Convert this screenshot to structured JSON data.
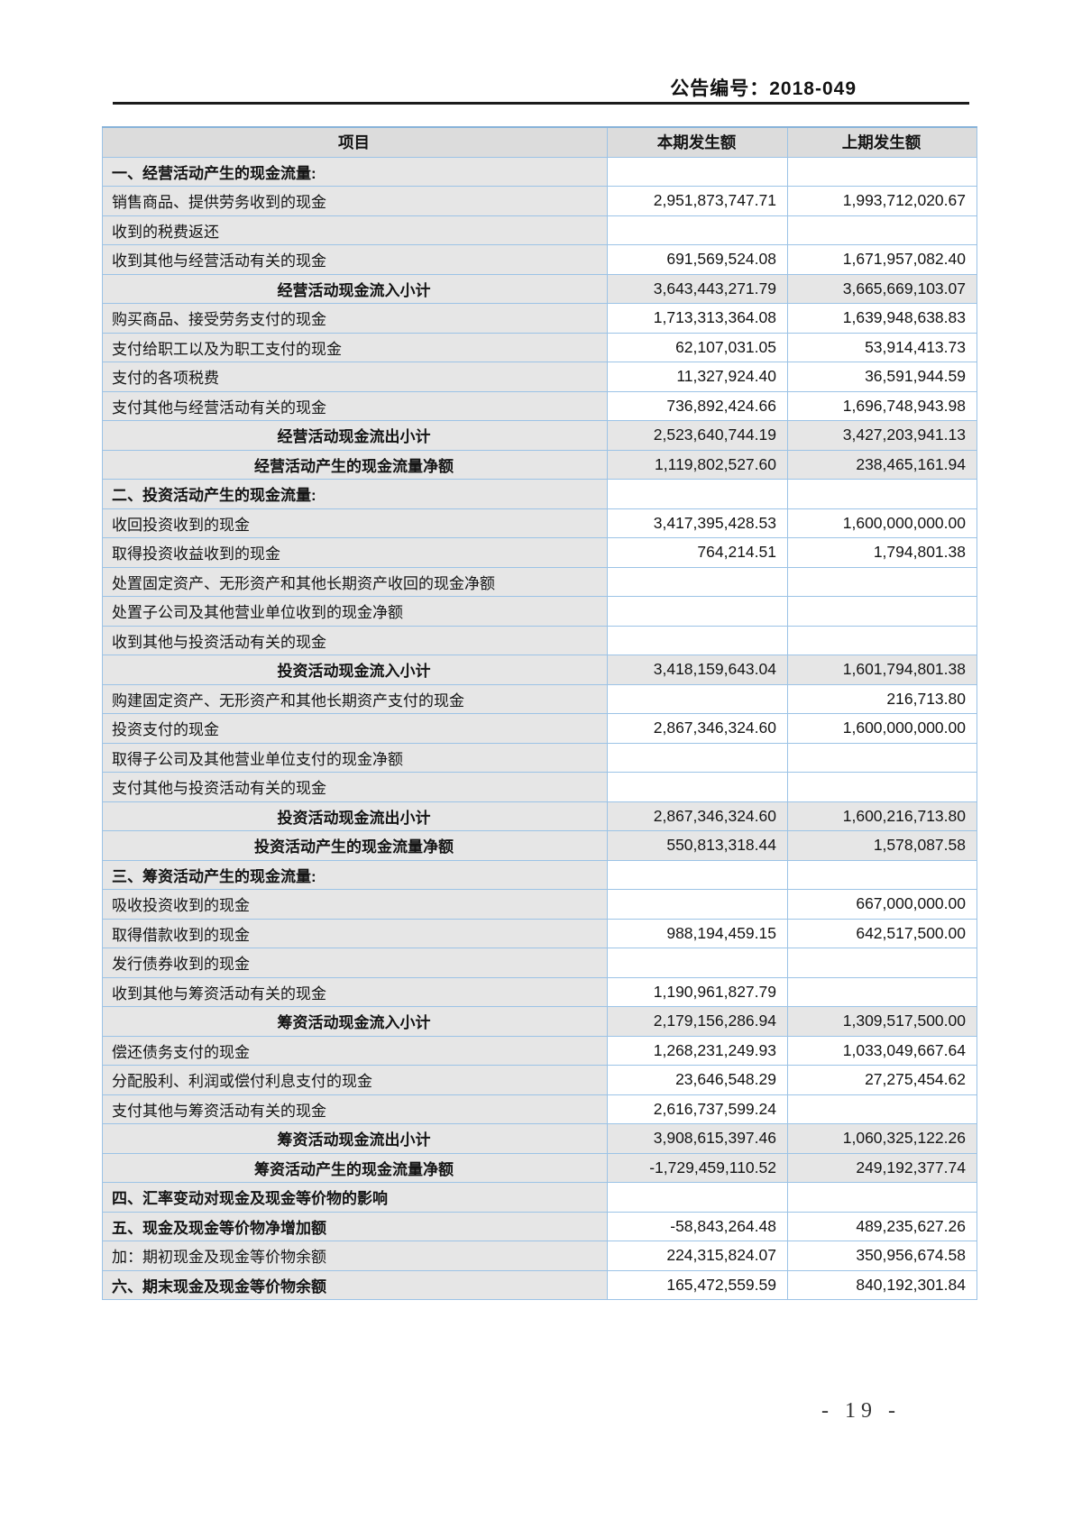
{
  "page": {
    "doc_number": "公告编号：2018-049",
    "page_number": "- 19 -"
  },
  "colors": {
    "table_border": "#9cc3e6",
    "header_fill": "#dcdcdc",
    "label_column_fill": "#e6e6e6",
    "subtotal_row_fill": "#e6e6e6",
    "header_rule": "#1c1c1c",
    "text": "#141414"
  },
  "table": {
    "headers": [
      "项目",
      "本期发生额",
      "上期发生额"
    ],
    "rows": [
      {
        "label": "一、经营活动产生的现金流量:",
        "current": "",
        "prior": "",
        "bold": true,
        "center": false,
        "shaded": false
      },
      {
        "label": "销售商品、提供劳务收到的现金",
        "current": "2,951,873,747.71",
        "prior": "1,993,712,020.67",
        "bold": false,
        "center": false,
        "shaded": false
      },
      {
        "label": "收到的税费返还",
        "current": "",
        "prior": "",
        "bold": false,
        "center": false,
        "shaded": false
      },
      {
        "label": "收到其他与经营活动有关的现金",
        "current": "691,569,524.08",
        "prior": "1,671,957,082.40",
        "bold": false,
        "center": false,
        "shaded": false
      },
      {
        "label": "经营活动现金流入小计",
        "current": "3,643,443,271.79",
        "prior": "3,665,669,103.07",
        "bold": true,
        "center": true,
        "shaded": true
      },
      {
        "label": "购买商品、接受劳务支付的现金",
        "current": "1,713,313,364.08",
        "prior": "1,639,948,638.83",
        "bold": false,
        "center": false,
        "shaded": false
      },
      {
        "label": "支付给职工以及为职工支付的现金",
        "current": "62,107,031.05",
        "prior": "53,914,413.73",
        "bold": false,
        "center": false,
        "shaded": false
      },
      {
        "label": "支付的各项税费",
        "current": "11,327,924.40",
        "prior": "36,591,944.59",
        "bold": false,
        "center": false,
        "shaded": false
      },
      {
        "label": "支付其他与经营活动有关的现金",
        "current": "736,892,424.66",
        "prior": "1,696,748,943.98",
        "bold": false,
        "center": false,
        "shaded": false
      },
      {
        "label": "经营活动现金流出小计",
        "current": "2,523,640,744.19",
        "prior": "3,427,203,941.13",
        "bold": true,
        "center": true,
        "shaded": true
      },
      {
        "label": "经营活动产生的现金流量净额",
        "current": "1,119,802,527.60",
        "prior": "238,465,161.94",
        "bold": true,
        "center": true,
        "shaded": true
      },
      {
        "label": "二、投资活动产生的现金流量:",
        "current": "",
        "prior": "",
        "bold": true,
        "center": false,
        "shaded": false
      },
      {
        "label": "收回投资收到的现金",
        "current": "3,417,395,428.53",
        "prior": "1,600,000,000.00",
        "bold": false,
        "center": false,
        "shaded": false
      },
      {
        "label": "取得投资收益收到的现金",
        "current": "764,214.51",
        "prior": "1,794,801.38",
        "bold": false,
        "center": false,
        "shaded": false
      },
      {
        "label": "处置固定资产、无形资产和其他长期资产收回的现金净额",
        "current": "",
        "prior": "",
        "bold": false,
        "center": false,
        "shaded": false
      },
      {
        "label": "处置子公司及其他营业单位收到的现金净额",
        "current": "",
        "prior": "",
        "bold": false,
        "center": false,
        "shaded": false
      },
      {
        "label": "收到其他与投资活动有关的现金",
        "current": "",
        "prior": "",
        "bold": false,
        "center": false,
        "shaded": false
      },
      {
        "label": "投资活动现金流入小计",
        "current": "3,418,159,643.04",
        "prior": "1,601,794,801.38",
        "bold": true,
        "center": true,
        "shaded": true
      },
      {
        "label": "购建固定资产、无形资产和其他长期资产支付的现金",
        "current": "",
        "prior": "216,713.80",
        "bold": false,
        "center": false,
        "shaded": false
      },
      {
        "label": "投资支付的现金",
        "current": "2,867,346,324.60",
        "prior": "1,600,000,000.00",
        "bold": false,
        "center": false,
        "shaded": false
      },
      {
        "label": "取得子公司及其他营业单位支付的现金净额",
        "current": "",
        "prior": "",
        "bold": false,
        "center": false,
        "shaded": false
      },
      {
        "label": "支付其他与投资活动有关的现金",
        "current": "",
        "prior": "",
        "bold": false,
        "center": false,
        "shaded": false
      },
      {
        "label": "投资活动现金流出小计",
        "current": "2,867,346,324.60",
        "prior": "1,600,216,713.80",
        "bold": true,
        "center": true,
        "shaded": true
      },
      {
        "label": "投资活动产生的现金流量净额",
        "current": "550,813,318.44",
        "prior": "1,578,087.58",
        "bold": true,
        "center": true,
        "shaded": true
      },
      {
        "label": "三、筹资活动产生的现金流量:",
        "current": "",
        "prior": "",
        "bold": true,
        "center": false,
        "shaded": false
      },
      {
        "label": "吸收投资收到的现金",
        "current": "",
        "prior": "667,000,000.00",
        "bold": false,
        "center": false,
        "shaded": false
      },
      {
        "label": "取得借款收到的现金",
        "current": "988,194,459.15",
        "prior": "642,517,500.00",
        "bold": false,
        "center": false,
        "shaded": false
      },
      {
        "label": "发行债券收到的现金",
        "current": "",
        "prior": "",
        "bold": false,
        "center": false,
        "shaded": false
      },
      {
        "label": "收到其他与筹资活动有关的现金",
        "current": "1,190,961,827.79",
        "prior": "",
        "bold": false,
        "center": false,
        "shaded": false
      },
      {
        "label": "筹资活动现金流入小计",
        "current": "2,179,156,286.94",
        "prior": "1,309,517,500.00",
        "bold": true,
        "center": true,
        "shaded": true
      },
      {
        "label": "偿还债务支付的现金",
        "current": "1,268,231,249.93",
        "prior": "1,033,049,667.64",
        "bold": false,
        "center": false,
        "shaded": false
      },
      {
        "label": "分配股利、利润或偿付利息支付的现金",
        "current": "23,646,548.29",
        "prior": "27,275,454.62",
        "bold": false,
        "center": false,
        "shaded": false
      },
      {
        "label": "支付其他与筹资活动有关的现金",
        "current": "2,616,737,599.24",
        "prior": "",
        "bold": false,
        "center": false,
        "shaded": false
      },
      {
        "label": "筹资活动现金流出小计",
        "current": "3,908,615,397.46",
        "prior": "1,060,325,122.26",
        "bold": true,
        "center": true,
        "shaded": true
      },
      {
        "label": "筹资活动产生的现金流量净额",
        "current": "-1,729,459,110.52",
        "prior": "249,192,377.74",
        "bold": true,
        "center": true,
        "shaded": true
      },
      {
        "label": "四、汇率变动对现金及现金等价物的影响",
        "current": "",
        "prior": "",
        "bold": true,
        "center": false,
        "shaded": false
      },
      {
        "label": "五、现金及现金等价物净增加额",
        "current": "-58,843,264.48",
        "prior": "489,235,627.26",
        "bold": true,
        "center": false,
        "shaded": false
      },
      {
        "label": "加：期初现金及现金等价物余额",
        "current": "224,315,824.07",
        "prior": "350,956,674.58",
        "bold": false,
        "center": false,
        "shaded": false
      },
      {
        "label": "六、期末现金及现金等价物余额",
        "current": "165,472,559.59",
        "prior": "840,192,301.84",
        "bold": true,
        "center": false,
        "shaded": false
      }
    ]
  }
}
